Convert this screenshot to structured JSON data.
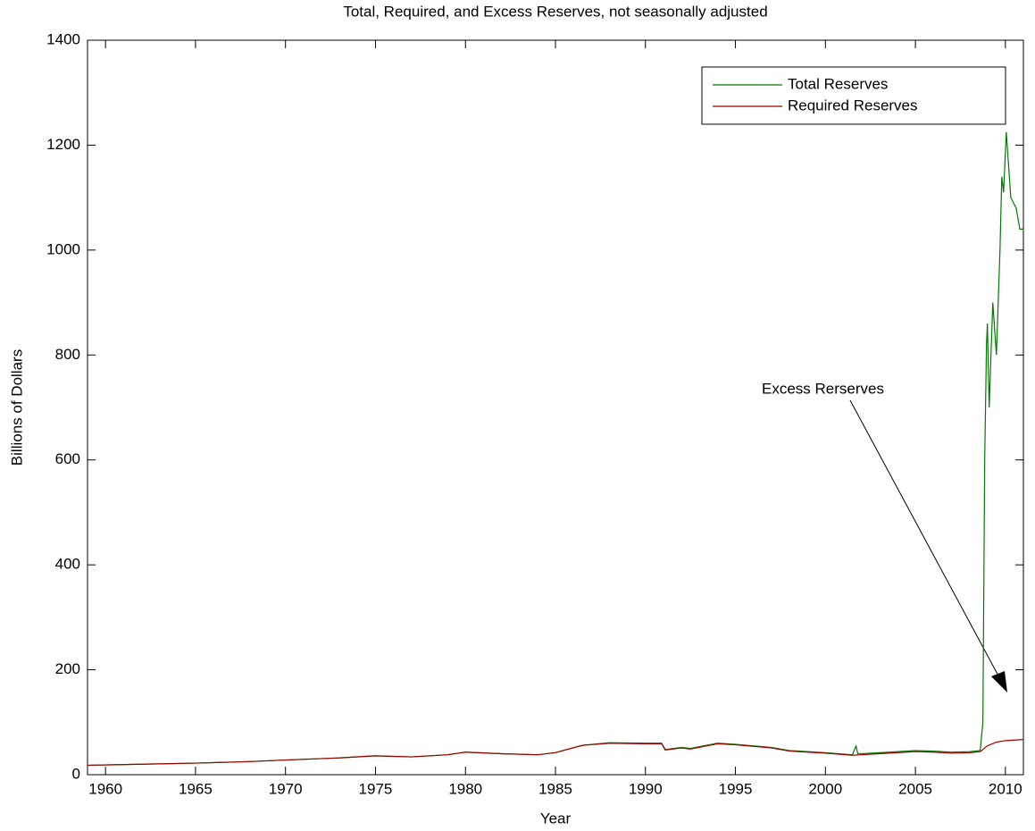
{
  "chart_data": {
    "type": "line",
    "title": "Total, Required, and Excess Reserves, not seasonally adjusted",
    "xlabel": "Year",
    "ylabel": "Billions of Dollars",
    "xlim": [
      1959,
      2011
    ],
    "ylim": [
      0,
      1400
    ],
    "xticks": [
      1960,
      1965,
      1970,
      1975,
      1980,
      1985,
      1990,
      1995,
      2000,
      2005,
      2010
    ],
    "yticks": [
      0,
      200,
      400,
      600,
      800,
      1000,
      1200,
      1400
    ],
    "grid": false,
    "legend": "upper right",
    "annotation": "Excess Rerserves",
    "series": [
      {
        "name": "Total Reserves",
        "color": "#007a00",
        "x": [
          1959,
          1962,
          1965,
          1968,
          1970,
          1973,
          1975,
          1977,
          1979,
          1980,
          1982,
          1984,
          1985,
          1986.5,
          1988,
          1990,
          1990.9,
          1991.1,
          1992,
          1992.5,
          1994,
          1995,
          1997,
          1998,
          2000,
          2001.5,
          2001.7,
          2001.8,
          2002,
          2003,
          2005,
          2006,
          2007,
          2008,
          2008.6,
          2008.75,
          2008.85,
          2008.95,
          2009.0,
          2009.1,
          2009.3,
          2009.5,
          2009.7,
          2009.8,
          2009.9,
          2010.05,
          2010.3,
          2010.6,
          2010.8,
          2011
        ],
        "values": [
          18,
          20,
          22,
          25,
          28,
          32,
          36,
          34,
          38,
          43,
          40,
          38,
          42,
          56,
          61,
          60,
          60,
          48,
          52,
          50,
          60,
          58,
          52,
          46,
          42,
          38,
          55,
          40,
          40,
          42,
          46,
          45,
          43,
          44,
          46,
          100,
          600,
          820,
          860,
          700,
          900,
          800,
          1000,
          1140,
          1110,
          1225,
          1100,
          1080,
          1040,
          1040
        ]
      },
      {
        "name": "Required Reserves",
        "color": "#a00000",
        "x": [
          1959,
          1962,
          1965,
          1968,
          1970,
          1973,
          1975,
          1977,
          1979,
          1980,
          1982,
          1984,
          1985,
          1986.5,
          1988,
          1990,
          1990.9,
          1991.1,
          1992,
          1992.5,
          1994,
          1995,
          1997,
          1998,
          2000,
          2001.5,
          2002,
          2003,
          2005,
          2006,
          2007,
          2008,
          2008.6,
          2009,
          2009.5,
          2010,
          2011
        ],
        "values": [
          18,
          20,
          22,
          25,
          28,
          32,
          36,
          34,
          38,
          43,
          40,
          38,
          42,
          56,
          60,
          59,
          59,
          47,
          51,
          49,
          59,
          57,
          51,
          45,
          41,
          37,
          38,
          40,
          44,
          43,
          41,
          42,
          44,
          55,
          62,
          65,
          67
        ]
      }
    ]
  }
}
